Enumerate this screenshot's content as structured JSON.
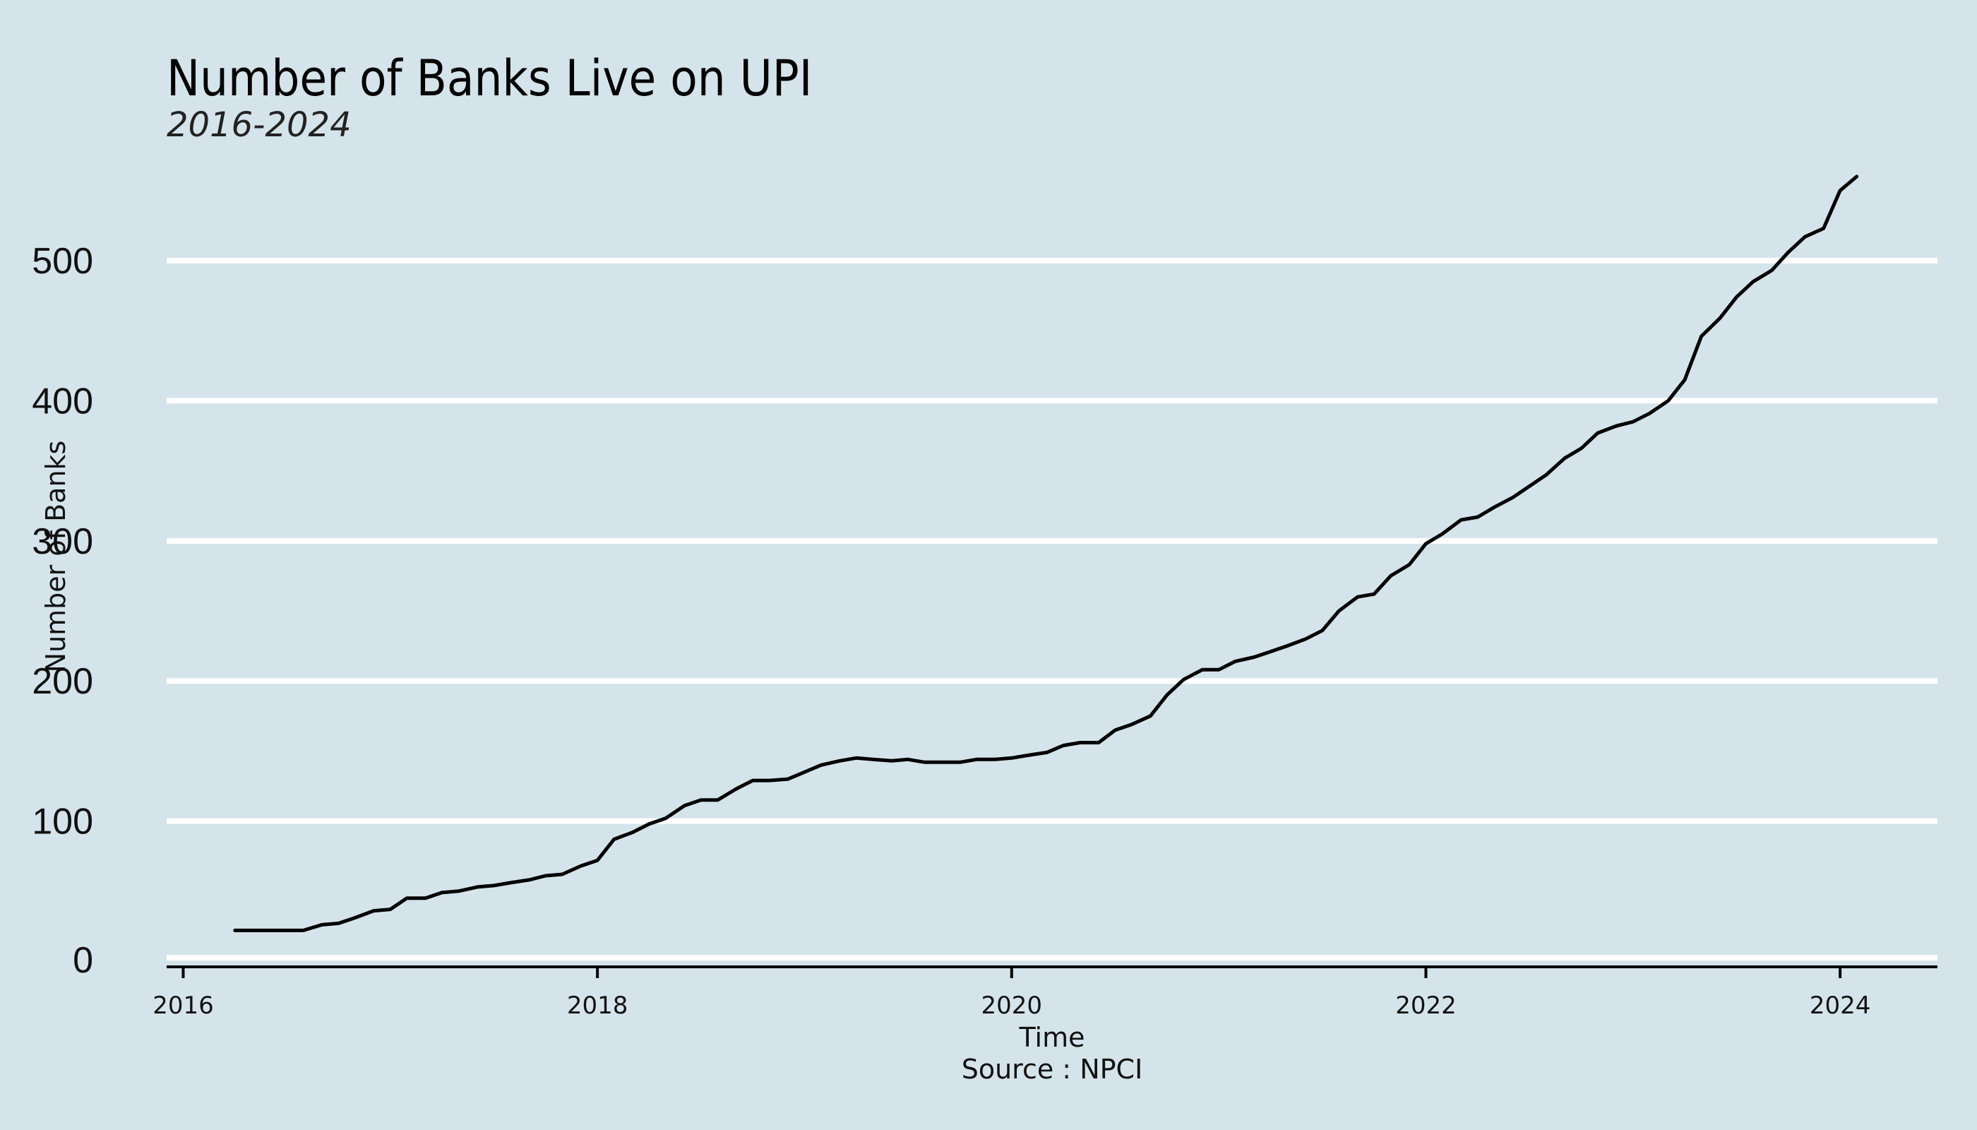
{
  "chart_data": {
    "type": "line",
    "title": "Number of Banks Live on UPI",
    "subtitle": "2016-2024",
    "xlabel": "Time",
    "ylabel": "Number of Banks",
    "caption": "Source : NPCI",
    "xlim": [
      2015.92,
      2024.47
    ],
    "ylim": [
      0,
      560
    ],
    "x_ticks": [
      2016,
      2018,
      2020,
      2022,
      2024
    ],
    "x_tick_labels": [
      "2016",
      "2018",
      "2020",
      "2022",
      "2024"
    ],
    "y_ticks": [
      0,
      100,
      200,
      300,
      400,
      500
    ],
    "y_tick_labels": [
      "0",
      "100",
      "200",
      "300",
      "400",
      "500"
    ],
    "grid": "horizontal",
    "line_color": "#000000",
    "background_color": "#d5e4eb",
    "series": [
      {
        "x": [
          2016.25,
          2016.33,
          2016.42,
          2016.5,
          2016.58,
          2016.67,
          2016.75,
          2016.83,
          2016.92,
          2017.0,
          2017.08,
          2017.17,
          2017.25,
          2017.33,
          2017.42,
          2017.5,
          2017.58,
          2017.67,
          2017.75,
          2017.83,
          2017.92,
          2018.0,
          2018.08,
          2018.17,
          2018.25,
          2018.33,
          2018.42,
          2018.5,
          2018.58,
          2018.67,
          2018.75,
          2018.83,
          2018.92,
          2019.0,
          2019.08,
          2019.17,
          2019.25,
          2019.33,
          2019.42,
          2019.5,
          2019.58,
          2019.67,
          2019.75,
          2019.83,
          2019.92,
          2020.0,
          2020.08,
          2020.17,
          2020.25,
          2020.33,
          2020.42,
          2020.5,
          2020.58,
          2020.67,
          2020.75,
          2020.83,
          2020.92,
          2021.0,
          2021.08,
          2021.17,
          2021.25,
          2021.33,
          2021.42,
          2021.5,
          2021.58,
          2021.67,
          2021.75,
          2021.83,
          2021.92,
          2022.0,
          2022.08,
          2022.17,
          2022.25,
          2022.33,
          2022.42,
          2022.5,
          2022.58,
          2022.67,
          2022.75,
          2022.83,
          2022.92,
          2023.0,
          2023.08,
          2023.17,
          2023.25,
          2023.33,
          2023.42,
          2023.5,
          2023.58,
          2023.67,
          2023.75,
          2023.83,
          2023.92,
          2024.0,
          2024.08
        ],
        "y": [
          22,
          22,
          22,
          22,
          22,
          26,
          27,
          31,
          36,
          37,
          45,
          45,
          49,
          50,
          53,
          54,
          56,
          58,
          61,
          62,
          68,
          72,
          87,
          92,
          98,
          102,
          111,
          115,
          115,
          123,
          129,
          129,
          130,
          135,
          140,
          143,
          145,
          144,
          143,
          144,
          142,
          142,
          142,
          144,
          144,
          145,
          147,
          149,
          154,
          156,
          156,
          165,
          169,
          175,
          190,
          201,
          208,
          208,
          214,
          217,
          221,
          225,
          230,
          236,
          250,
          260,
          262,
          275,
          283,
          298,
          305,
          315,
          317,
          324,
          331,
          339,
          347,
          359,
          366,
          377,
          382,
          385,
          391,
          400,
          415,
          446,
          459,
          474,
          485,
          493,
          506,
          517,
          523,
          550,
          560
        ]
      }
    ]
  }
}
